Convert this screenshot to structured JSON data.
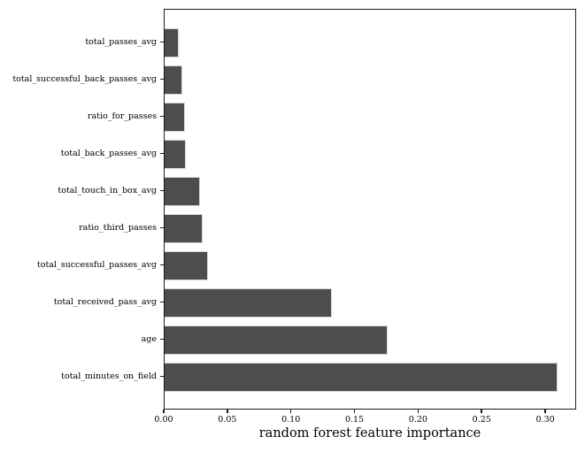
{
  "chart_data": {
    "type": "bar",
    "orientation": "horizontal",
    "title": "",
    "xlabel": "random forest feature importance",
    "ylabel": "",
    "categories": [
      "total_passes_avg",
      "total_successful_back_passes_avg",
      "ratio_for_passes",
      "total_back_passes_avg",
      "total_touch_in_box_avg",
      "ratio_third_passes",
      "total_successful_passes_avg",
      "total_received_pass_avg",
      "age",
      "total_minutes_on_field"
    ],
    "values": [
      0.011,
      0.014,
      0.016,
      0.017,
      0.028,
      0.03,
      0.034,
      0.132,
      0.176,
      0.31
    ],
    "xlim": [
      0,
      0.3243
    ],
    "xticks": [
      0.0,
      0.05,
      0.1,
      0.15,
      0.2,
      0.25,
      0.3
    ],
    "xtick_labels": [
      "0.00",
      "0.05",
      "0.10",
      "0.15",
      "0.20",
      "0.25",
      "0.30"
    ],
    "grid": false,
    "legend": null,
    "bar_color": "#4d4d4d",
    "bar_edge_color": "#d6d6d6",
    "spine_color": "#1c1c1c",
    "background": "#ffffff"
  }
}
